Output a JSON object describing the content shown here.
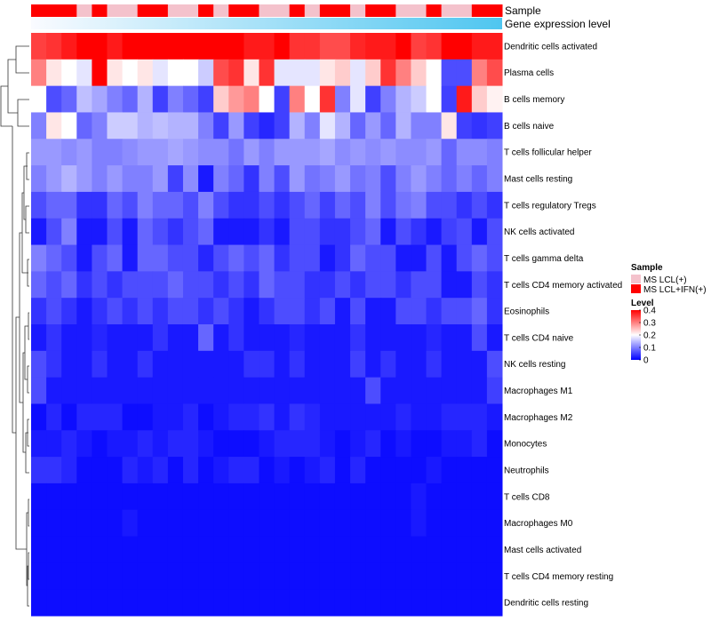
{
  "chart_data": {
    "type": "heatmap",
    "title": "",
    "annotation_labels": [
      "Sample",
      "Gene expression level"
    ],
    "rows": [
      "Dendritic cells activated",
      "Plasma cells",
      "B cells memory",
      "B cells naive",
      "T cells follicular helper",
      "Mast cells resting",
      "T cells regulatory  Tregs",
      "NK cells activated",
      "T cells gamma delta",
      "T cells CD4 memory activated",
      "Eosinophils",
      "T cells CD4 naive",
      "NK cells resting",
      "Macrophages M1",
      "Macrophages M2",
      "Monocytes",
      "Neutrophils",
      "T cells CD8",
      "Macrophages M0",
      "Mast cells activated",
      "T cells CD4 memory resting",
      "Dendritic cells resting"
    ],
    "sample_groups": [
      1,
      1,
      1,
      0,
      1,
      0,
      0,
      1,
      1,
      0,
      0,
      1,
      0,
      1,
      1,
      0,
      0,
      1,
      0,
      1,
      1,
      0,
      1,
      1,
      0,
      0,
      1,
      0,
      0,
      1,
      1
    ],
    "values": [
      [
        0.35,
        0.36,
        0.38,
        0.4,
        0.4,
        0.38,
        0.4,
        0.4,
        0.4,
        0.4,
        0.4,
        0.4,
        0.4,
        0.4,
        0.38,
        0.38,
        0.4,
        0.36,
        0.36,
        0.34,
        0.34,
        0.37,
        0.38,
        0.38,
        0.4,
        0.35,
        0.36,
        0.4,
        0.4,
        0.38,
        0.38
      ],
      [
        0.3,
        0.22,
        0.2,
        0.18,
        0.4,
        0.22,
        0.2,
        0.22,
        0.18,
        0.2,
        0.2,
        0.16,
        0.34,
        0.36,
        0.22,
        0.36,
        0.18,
        0.18,
        0.18,
        0.22,
        0.24,
        0.18,
        0.24,
        0.36,
        0.3,
        0.24,
        0.2,
        0.06,
        0.06,
        0.3,
        0.34
      ],
      [
        0.2,
        0.06,
        0.08,
        0.15,
        0.13,
        0.1,
        0.08,
        0.14,
        0.05,
        0.1,
        0.08,
        0.05,
        0.24,
        0.28,
        0.3,
        0.2,
        0.05,
        0.3,
        0.2,
        0.36,
        0.1,
        0.18,
        0.05,
        0.1,
        0.14,
        0.16,
        0.2,
        0.05,
        0.38,
        0.24,
        0.21
      ],
      [
        0.1,
        0.22,
        0.2,
        0.08,
        0.1,
        0.16,
        0.16,
        0.14,
        0.15,
        0.14,
        0.14,
        0.1,
        0.05,
        0.12,
        0.05,
        0.03,
        0.05,
        0.14,
        0.1,
        0.18,
        0.14,
        0.08,
        0.12,
        0.08,
        0.14,
        0.1,
        0.1,
        0.22,
        0.05,
        0.04,
        0.05
      ],
      [
        0.12,
        0.12,
        0.11,
        0.12,
        0.1,
        0.1,
        0.11,
        0.12,
        0.12,
        0.13,
        0.12,
        0.11,
        0.11,
        0.09,
        0.12,
        0.1,
        0.12,
        0.12,
        0.12,
        0.13,
        0.11,
        0.12,
        0.11,
        0.12,
        0.11,
        0.11,
        0.12,
        0.08,
        0.11,
        0.11,
        0.1
      ],
      [
        0.1,
        0.12,
        0.14,
        0.12,
        0.1,
        0.12,
        0.1,
        0.1,
        0.12,
        0.05,
        0.11,
        0.02,
        0.1,
        0.08,
        0.04,
        0.1,
        0.06,
        0.12,
        0.09,
        0.1,
        0.12,
        0.09,
        0.1,
        0.06,
        0.1,
        0.12,
        0.1,
        0.08,
        0.1,
        0.08,
        0.1
      ],
      [
        0.06,
        0.08,
        0.08,
        0.04,
        0.04,
        0.08,
        0.06,
        0.1,
        0.08,
        0.08,
        0.06,
        0.1,
        0.06,
        0.04,
        0.04,
        0.06,
        0.04,
        0.06,
        0.08,
        0.05,
        0.08,
        0.06,
        0.1,
        0.06,
        0.09,
        0.1,
        0.06,
        0.06,
        0.04,
        0.06,
        0.04
      ],
      [
        0.02,
        0.06,
        0.1,
        0.02,
        0.02,
        0.06,
        0.02,
        0.08,
        0.06,
        0.04,
        0.06,
        0.08,
        0.02,
        0.02,
        0.02,
        0.04,
        0.02,
        0.06,
        0.06,
        0.04,
        0.04,
        0.06,
        0.08,
        0.02,
        0.06,
        0.04,
        0.02,
        0.05,
        0.06,
        0.02,
        0.06
      ],
      [
        0.1,
        0.08,
        0.06,
        0.02,
        0.06,
        0.08,
        0.02,
        0.08,
        0.08,
        0.06,
        0.06,
        0.03,
        0.06,
        0.08,
        0.06,
        0.08,
        0.04,
        0.06,
        0.06,
        0.02,
        0.04,
        0.08,
        0.06,
        0.06,
        0.02,
        0.02,
        0.06,
        0.02,
        0.06,
        0.08,
        0.06
      ],
      [
        0.08,
        0.06,
        0.08,
        0.04,
        0.06,
        0.04,
        0.06,
        0.06,
        0.06,
        0.08,
        0.06,
        0.06,
        0.04,
        0.06,
        0.04,
        0.08,
        0.06,
        0.06,
        0.04,
        0.04,
        0.06,
        0.04,
        0.06,
        0.06,
        0.04,
        0.06,
        0.06,
        0.02,
        0.02,
        0.06,
        0.04
      ],
      [
        0.04,
        0.06,
        0.04,
        0.02,
        0.04,
        0.06,
        0.04,
        0.06,
        0.04,
        0.06,
        0.06,
        0.04,
        0.06,
        0.04,
        0.02,
        0.04,
        0.06,
        0.06,
        0.04,
        0.06,
        0.02,
        0.06,
        0.02,
        0.02,
        0.06,
        0.06,
        0.04,
        0.06,
        0.06,
        0.08,
        0.04
      ],
      [
        0.02,
        0.04,
        0.02,
        0.02,
        0.03,
        0.02,
        0.02,
        0.02,
        0.04,
        0.02,
        0.02,
        0.08,
        0.02,
        0.04,
        0.02,
        0.02,
        0.02,
        0.03,
        0.02,
        0.02,
        0.02,
        0.04,
        0.02,
        0.02,
        0.02,
        0.02,
        0.03,
        0.02,
        0.02,
        0.06,
        0.02
      ],
      [
        0.06,
        0.04,
        0.02,
        0.02,
        0.04,
        0.02,
        0.02,
        0.04,
        0.02,
        0.02,
        0.02,
        0.02,
        0.02,
        0.02,
        0.04,
        0.04,
        0.02,
        0.04,
        0.02,
        0.02,
        0.02,
        0.05,
        0.02,
        0.04,
        0.02,
        0.02,
        0.04,
        0.02,
        0.02,
        0.02,
        0.06
      ],
      [
        0.06,
        0.02,
        0.02,
        0.02,
        0.02,
        0.02,
        0.02,
        0.02,
        0.02,
        0.02,
        0.02,
        0.02,
        0.02,
        0.02,
        0.02,
        0.02,
        0.02,
        0.02,
        0.02,
        0.02,
        0.02,
        0.02,
        0.06,
        0.02,
        0.02,
        0.02,
        0.02,
        0.02,
        0.02,
        0.02,
        0.05
      ],
      [
        0.01,
        0.03,
        0.01,
        0.03,
        0.03,
        0.03,
        0.01,
        0.01,
        0.02,
        0.02,
        0.03,
        0.01,
        0.02,
        0.03,
        0.03,
        0.04,
        0.02,
        0.04,
        0.03,
        0.02,
        0.02,
        0.02,
        0.02,
        0.02,
        0.03,
        0.02,
        0.02,
        0.03,
        0.03,
        0.03,
        0.02
      ],
      [
        0.02,
        0.02,
        0.03,
        0.02,
        0.01,
        0.02,
        0.02,
        0.03,
        0.02,
        0.03,
        0.03,
        0.02,
        0.01,
        0.01,
        0.01,
        0.02,
        0.03,
        0.03,
        0.03,
        0.02,
        0.01,
        0.02,
        0.03,
        0.01,
        0.02,
        0.01,
        0.01,
        0.02,
        0.02,
        0.03,
        0.01
      ],
      [
        0.04,
        0.04,
        0.03,
        0.01,
        0.01,
        0.01,
        0.03,
        0.02,
        0.03,
        0.01,
        0.03,
        0.01,
        0.02,
        0.03,
        0.03,
        0.01,
        0.02,
        0.01,
        0.02,
        0.03,
        0.01,
        0.03,
        0.01,
        0.01,
        0.01,
        0.01,
        0.02,
        0.01,
        0.01,
        0.01,
        0.01
      ],
      [
        0.01,
        0.01,
        0.01,
        0.01,
        0.01,
        0.01,
        0.01,
        0.01,
        0.01,
        0.01,
        0.01,
        0.01,
        0.01,
        0.01,
        0.01,
        0.01,
        0.01,
        0.01,
        0.01,
        0.01,
        0.01,
        0.01,
        0.01,
        0.01,
        0.01,
        0.02,
        0.01,
        0.01,
        0.01,
        0.01,
        0.01
      ],
      [
        0.01,
        0.01,
        0.01,
        0.01,
        0.01,
        0.01,
        0.02,
        0.01,
        0.01,
        0.01,
        0.01,
        0.01,
        0.01,
        0.01,
        0.01,
        0.01,
        0.01,
        0.01,
        0.01,
        0.01,
        0.01,
        0.01,
        0.01,
        0.01,
        0.01,
        0.02,
        0.01,
        0.01,
        0.01,
        0.01,
        0.01
      ],
      [
        0.01,
        0.01,
        0.01,
        0.01,
        0.01,
        0.01,
        0.01,
        0.01,
        0.01,
        0.01,
        0.01,
        0.01,
        0.01,
        0.01,
        0.01,
        0.01,
        0.01,
        0.01,
        0.01,
        0.01,
        0.01,
        0.01,
        0.01,
        0.01,
        0.01,
        0.01,
        0.01,
        0.01,
        0.01,
        0.01,
        0.01
      ],
      [
        0.01,
        0.01,
        0.01,
        0.01,
        0.01,
        0.01,
        0.01,
        0.01,
        0.01,
        0.01,
        0.01,
        0.01,
        0.01,
        0.01,
        0.01,
        0.01,
        0.01,
        0.01,
        0.01,
        0.01,
        0.01,
        0.01,
        0.01,
        0.01,
        0.01,
        0.01,
        0.01,
        0.01,
        0.01,
        0.01,
        0.01
      ],
      [
        0.01,
        0.01,
        0.01,
        0.01,
        0.01,
        0.01,
        0.01,
        0.01,
        0.01,
        0.01,
        0.01,
        0.01,
        0.01,
        0.01,
        0.01,
        0.01,
        0.01,
        0.01,
        0.01,
        0.01,
        0.01,
        0.01,
        0.01,
        0.01,
        0.01,
        0.01,
        0.01,
        0.01,
        0.01,
        0.01,
        0.01
      ]
    ],
    "color_scale": {
      "low": "#0000ff",
      "mid": "#ffffff",
      "high": "#ff0000",
      "min": 0,
      "mid_value": 0.2,
      "max": 0.4
    },
    "legend": {
      "sample_title": "Sample",
      "sample_entries": [
        {
          "label": "MS LCL(+)",
          "color": "#f4c2cc"
        },
        {
          "label": "MS LCL+IFN(+)",
          "color": "#ff0000"
        }
      ],
      "level_title": "Level",
      "level_ticks": [
        {
          "label": "0.4",
          "value": 0.4
        },
        {
          "label": "0.3",
          "value": 0.3
        },
        {
          "label": "0.2",
          "value": 0.2
        },
        {
          "label": "0.1",
          "value": 0.1
        },
        {
          "label": "0",
          "value": 0
        }
      ]
    },
    "expression_bar_colors": [
      "#fafbff",
      "#4fc6f0"
    ]
  }
}
